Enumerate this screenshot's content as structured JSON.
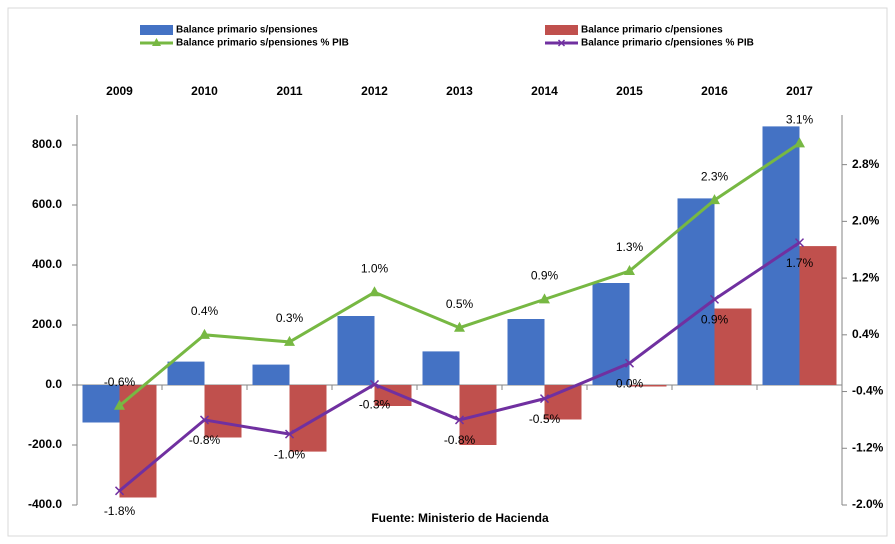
{
  "chart_data": {
    "type": "combo",
    "source": "Fuente: Ministerio de Hacienda",
    "legend": "top",
    "categories": [
      "2009",
      "2010",
      "2011",
      "2012",
      "2013",
      "2014",
      "2015",
      "2016",
      "2017"
    ],
    "ylim": [
      -400,
      900
    ],
    "yticks": [
      {
        "value": -400,
        "label": "-400.0"
      },
      {
        "value": -200,
        "label": "-200.0"
      },
      {
        "value": 0,
        "label": "0.0"
      },
      {
        "value": 200,
        "label": "200.0"
      },
      {
        "value": 400,
        "label": "400.0"
      },
      {
        "value": 600,
        "label": "600.0"
      },
      {
        "value": 800,
        "label": "800.0"
      }
    ],
    "y2lim": [
      -2.0,
      3.5
    ],
    "y2ticks": [
      {
        "value": -2.0,
        "label": "-2.0%"
      },
      {
        "value": -1.2,
        "label": "-1.2%"
      },
      {
        "value": -0.4,
        "label": "-0.4%"
      },
      {
        "value": 0.4,
        "label": "0.4%"
      },
      {
        "value": 1.2,
        "label": "1.2%"
      },
      {
        "value": 2.0,
        "label": "2.0%"
      },
      {
        "value": 2.8,
        "label": "2.8%"
      }
    ],
    "series": [
      {
        "name": "Balance primario s/pensiones",
        "type": "bar",
        "color": "#4472c4",
        "values": [
          -125,
          78,
          68,
          230,
          112,
          220,
          340,
          622,
          862
        ]
      },
      {
        "name": "Balance primario  c/pensiones",
        "type": "bar",
        "color": "#c0504d",
        "values": [
          -375,
          -175,
          -222,
          -70,
          -200,
          -115,
          -5,
          255,
          463
        ]
      },
      {
        "name": "Balance primario  s/pensiones % PIB",
        "type": "line",
        "axis": "y2",
        "color": "#77b843",
        "marker": "triangle",
        "values": [
          -0.6,
          0.4,
          0.3,
          1.0,
          0.5,
          0.9,
          1.3,
          2.3,
          3.1
        ],
        "value_labels": [
          "-0.6%",
          "0.4%",
          "0.3%",
          "1.0%",
          "0.5%",
          "0.9%",
          "1.3%",
          "2.3%",
          "3.1%"
        ]
      },
      {
        "name": "Balance primario  c/pensiones % PIB",
        "type": "line",
        "axis": "y2",
        "color": "#7030a0",
        "marker": "x",
        "values": [
          -1.8,
          -0.8,
          -1.0,
          -0.3,
          -0.8,
          -0.5,
          0.0,
          0.9,
          1.7
        ],
        "value_labels": [
          "-1.8%",
          "-0.8%",
          "-1.0%",
          "-0.3%",
          "-0.8%",
          "-0.5%",
          "0.0%",
          "0.9%",
          "1.7%"
        ]
      }
    ]
  }
}
